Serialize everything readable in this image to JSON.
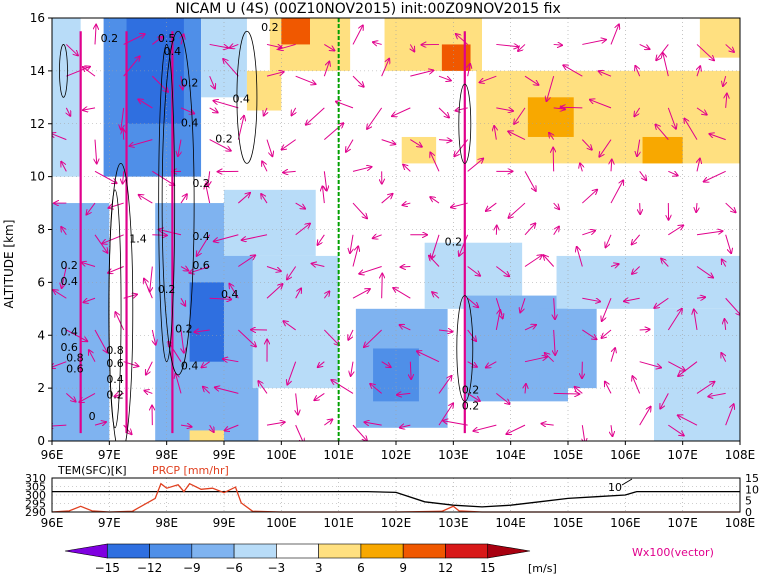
{
  "title": "NICAM U (4S) (00Z10NOV2015) init:00Z09NOV2015 fix",
  "colors": {
    "neg15": "#7f00e0",
    "neg12": "#2f6fe0",
    "neg9": "#4f8fe8",
    "neg6": "#7fb3f0",
    "neg3": "#b8dcf8",
    "pos3": "#ffe080",
    "pos6": "#f8a800",
    "pos9": "#f05800",
    "pos12": "#d81818",
    "pos15": "#a80010",
    "vector": "#e0008c",
    "temp_line": "#000000",
    "precip_line": "#e04020",
    "marker_line": "#00a000",
    "grid": "#a0a0a0"
  },
  "chart_data": [
    {
      "type": "heatmap",
      "title": "NICAM U (4S) (00Z10NOV2015) init:00Z09NOV2015 fix",
      "ylabel": "ALTITUDE [km]",
      "xlabel": "",
      "xlim": [
        96,
        108
      ],
      "ylim": [
        0,
        16
      ],
      "x_ticks": [
        "96E",
        "97E",
        "98E",
        "99E",
        "100E",
        "101E",
        "102E",
        "103E",
        "104E",
        "105E",
        "106E",
        "107E",
        "108E"
      ],
      "y_ticks": [
        "0",
        "2",
        "4",
        "6",
        "8",
        "10",
        "12",
        "14",
        "16"
      ],
      "grid": true,
      "marker_longitude": 101,
      "contour_labels": [
        "0.2",
        "0.5",
        "0.4",
        "0.2",
        "1.4",
        "0.2",
        "0.4",
        "0.6",
        "0.4",
        "0.2",
        "0.2",
        "0.2",
        "0.4",
        "0.8",
        "0.6",
        "0.4",
        "0.2",
        "0.4",
        "0.2",
        "0.4",
        "0.2",
        "0.8",
        "0.6",
        "0.4",
        "0.6",
        "0.2",
        "0.4",
        "0.2",
        "0.2",
        "0"
      ],
      "vector_label": "Wx100(vector)",
      "cells": [
        {
          "lon_min": 96.0,
          "lon_max": 96.5,
          "alt_min": 10,
          "alt_max": 16,
          "u": -4
        },
        {
          "lon_min": 96.9,
          "lon_max": 98.6,
          "alt_min": 10,
          "alt_max": 16,
          "u": -8
        },
        {
          "lon_min": 97.3,
          "lon_max": 98.3,
          "alt_min": 12,
          "alt_max": 16,
          "u": -11
        },
        {
          "lon_min": 98.6,
          "lon_max": 99.4,
          "alt_min": 13,
          "alt_max": 16,
          "u": -4
        },
        {
          "lon_min": 96.0,
          "lon_max": 97.0,
          "alt_min": 0,
          "alt_max": 9,
          "u": -5
        },
        {
          "lon_min": 97.8,
          "lon_max": 99.6,
          "alt_min": 0,
          "alt_max": 9,
          "u": -7
        },
        {
          "lon_min": 98.4,
          "lon_max": 99.0,
          "alt_min": 3,
          "alt_max": 6,
          "u": -11
        },
        {
          "lon_min": 99.0,
          "lon_max": 100.6,
          "alt_min": 7,
          "alt_max": 9.5,
          "u": -4
        },
        {
          "lon_min": 99.5,
          "lon_max": 101.0,
          "alt_min": 2,
          "alt_max": 7,
          "u": -4
        },
        {
          "lon_min": 101.3,
          "lon_max": 102.9,
          "alt_min": 0.5,
          "alt_max": 5,
          "u": -7
        },
        {
          "lon_min": 101.6,
          "lon_max": 102.4,
          "alt_min": 1.5,
          "alt_max": 3.5,
          "u": -10
        },
        {
          "lon_min": 102.5,
          "lon_max": 104.2,
          "alt_min": 5,
          "alt_max": 7.5,
          "u": -4
        },
        {
          "lon_min": 103.2,
          "lon_max": 105.0,
          "alt_min": 1.5,
          "alt_max": 5.5,
          "u": -7
        },
        {
          "lon_min": 104.8,
          "lon_max": 108.0,
          "alt_min": 5,
          "alt_max": 7,
          "u": -4
        },
        {
          "lon_min": 104.5,
          "lon_max": 105.5,
          "alt_min": 2,
          "alt_max": 5,
          "u": -5
        },
        {
          "lon_min": 106.5,
          "lon_max": 108.0,
          "alt_min": 0,
          "alt_max": 5,
          "u": -4
        },
        {
          "lon_min": 99.8,
          "lon_max": 101.2,
          "alt_min": 14,
          "alt_max": 16,
          "u": 5
        },
        {
          "lon_min": 100.0,
          "lon_max": 100.5,
          "alt_min": 15,
          "alt_max": 16,
          "u": 11
        },
        {
          "lon_min": 101.8,
          "lon_max": 103.5,
          "alt_min": 14,
          "alt_max": 16,
          "u": 5
        },
        {
          "lon_min": 102.8,
          "lon_max": 103.3,
          "alt_min": 14,
          "alt_max": 15,
          "u": 10
        },
        {
          "lon_min": 103.4,
          "lon_max": 108.0,
          "alt_min": 10.5,
          "alt_max": 14,
          "u": 4
        },
        {
          "lon_min": 104.3,
          "lon_max": 105.1,
          "alt_min": 11.5,
          "alt_max": 13,
          "u": 7
        },
        {
          "lon_min": 106.3,
          "lon_max": 107.0,
          "alt_min": 10.5,
          "alt_max": 11.5,
          "u": 7
        },
        {
          "lon_min": 99.4,
          "lon_max": 100.0,
          "alt_min": 12.5,
          "alt_max": 14,
          "u": 4
        },
        {
          "lon_min": 102.1,
          "lon_max": 102.7,
          "alt_min": 10.5,
          "alt_max": 11.5,
          "u": 4
        },
        {
          "lon_min": 107.3,
          "lon_max": 108.0,
          "alt_min": 14.5,
          "alt_max": 16,
          "u": 4
        },
        {
          "lon_min": 98.4,
          "lon_max": 99.0,
          "alt_min": 0,
          "alt_max": 0.4,
          "u": 4
        }
      ]
    },
    {
      "type": "line",
      "title": "",
      "legend": [
        "TEM(SFC)[K]",
        "PRCP [mm/hr]"
      ],
      "x_ticks": [
        "96E",
        "97E",
        "98E",
        "99E",
        "100E",
        "101E",
        "102E",
        "103E",
        "104E",
        "105E",
        "106E",
        "107E",
        "108E"
      ],
      "xlim": [
        96,
        108
      ],
      "left_ylim": [
        290,
        310
      ],
      "left_ticks": [
        "310",
        "305",
        "300",
        "295",
        "290"
      ],
      "right_ylim": [
        0,
        15
      ],
      "right_ticks": [
        "15",
        "10",
        "5",
        "0"
      ],
      "point_label": "10",
      "series": [
        {
          "name": "TEM(SFC)[K]",
          "x": [
            96.0,
            97.0,
            98.0,
            99.0,
            99.4,
            100.0,
            101.0,
            101.5,
            102.0,
            102.5,
            103.0,
            103.5,
            104.0,
            104.5,
            105.0,
            105.5,
            106.0,
            106.2,
            107.0,
            108.0
          ],
          "y": [
            302,
            302,
            302,
            302,
            302,
            302,
            302,
            302,
            301.5,
            296,
            294,
            293,
            294,
            296,
            298,
            299,
            300,
            302,
            302,
            302
          ]
        },
        {
          "name": "PRCP [mm/hr]",
          "x": [
            96.0,
            96.3,
            96.5,
            96.7,
            97.0,
            97.4,
            97.8,
            97.9,
            98.0,
            98.2,
            98.3,
            98.4,
            98.6,
            98.8,
            99.0,
            99.2,
            99.3,
            99.5,
            100.0,
            102.0,
            102.8,
            103.0,
            103.1,
            103.5,
            108.0
          ],
          "y": [
            0,
            0.5,
            2.5,
            0.5,
            0,
            0.3,
            6,
            12.5,
            10.5,
            12,
            9,
            12.5,
            10,
            10.5,
            8.5,
            11,
            4,
            0.3,
            0,
            0,
            0.3,
            2.5,
            0.5,
            0,
            0
          ]
        }
      ]
    },
    {
      "type": "bar",
      "title": "",
      "unit": "[m/s]",
      "categories": [
        "−15",
        "−12",
        "−9",
        "−6",
        "−3",
        "3",
        "6",
        "9",
        "12",
        "15"
      ]
    }
  ]
}
